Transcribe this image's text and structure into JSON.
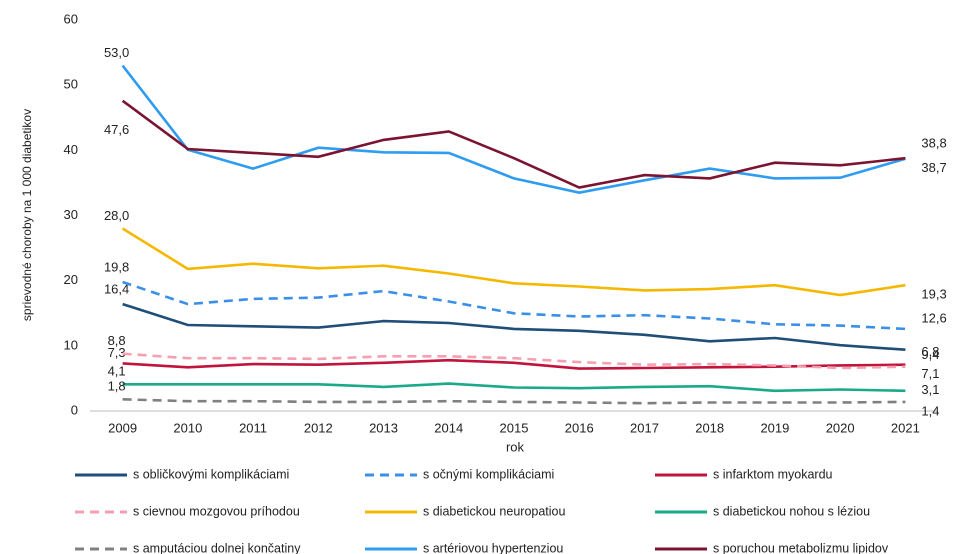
{
  "chart_data": {
    "type": "line",
    "x_label": "rok",
    "y_label": "sprievodné choroby na 1 000 diabetikov",
    "categories": [
      "2009",
      "2010",
      "2011",
      "2012",
      "2013",
      "2014",
      "2015",
      "2016",
      "2017",
      "2018",
      "2019",
      "2020",
      "2021"
    ],
    "ylim": [
      0,
      60
    ],
    "yticks": [
      0,
      10,
      20,
      30,
      40,
      50,
      60
    ],
    "grid": false,
    "series": [
      {
        "name": "s obličkovými komplikáciami",
        "color": "#1f4e79",
        "dashed": false,
        "values": [
          16.4,
          13.2,
          13.0,
          12.8,
          13.8,
          13.5,
          12.6,
          12.3,
          11.7,
          10.7,
          11.2,
          10.1,
          9.4
        ],
        "value_labels": [
          "16,4",
          null,
          null,
          null,
          null,
          null,
          null,
          null,
          null,
          null,
          null,
          null,
          "9,4"
        ]
      },
      {
        "name": "s očnými komplikáciami",
        "color": "#3a8fe8",
        "dashed": true,
        "values": [
          19.8,
          16.4,
          17.2,
          17.4,
          18.4,
          16.8,
          15.0,
          14.5,
          14.7,
          14.2,
          13.3,
          13.1,
          12.6
        ],
        "value_labels": [
          "19,8",
          null,
          null,
          null,
          null,
          null,
          null,
          null,
          null,
          null,
          null,
          null,
          "12,6"
        ]
      },
      {
        "name": "s infarktom myokardu",
        "color": "#c0143c",
        "dashed": false,
        "values": [
          7.3,
          6.7,
          7.2,
          7.1,
          7.4,
          7.8,
          7.4,
          6.5,
          6.6,
          6.7,
          6.8,
          7.0,
          7.1
        ],
        "value_labels": [
          "7,3",
          null,
          null,
          null,
          null,
          null,
          null,
          null,
          null,
          null,
          null,
          null,
          "7,1"
        ]
      },
      {
        "name": "s cievnou mozgovou príhodou",
        "color": "#f4a0b0",
        "dashed": true,
        "values": [
          8.8,
          8.1,
          8.1,
          8.0,
          8.4,
          8.4,
          8.1,
          7.5,
          7.1,
          7.2,
          7.0,
          6.6,
          6.8
        ],
        "value_labels": [
          "8,8",
          null,
          null,
          null,
          null,
          null,
          null,
          null,
          null,
          null,
          null,
          null,
          "6,8"
        ]
      },
      {
        "name": "s diabetickou neuropatiou",
        "color": "#f5b800",
        "dashed": false,
        "values": [
          28.0,
          21.8,
          22.6,
          21.9,
          22.3,
          21.1,
          19.6,
          19.1,
          18.5,
          18.7,
          19.3,
          17.8,
          19.3
        ],
        "value_labels": [
          "28,0",
          null,
          null,
          null,
          null,
          null,
          null,
          null,
          null,
          null,
          null,
          null,
          "19,3"
        ]
      },
      {
        "name": "s diabetickou nohou s léziou",
        "color": "#1aaa8a",
        "dashed": false,
        "values": [
          4.1,
          4.1,
          4.1,
          4.1,
          3.7,
          4.2,
          3.6,
          3.5,
          3.7,
          3.8,
          3.1,
          3.3,
          3.1
        ],
        "value_labels": [
          "4,1",
          null,
          null,
          null,
          null,
          null,
          null,
          null,
          null,
          null,
          null,
          null,
          "3,1"
        ]
      },
      {
        "name": "s amputáciou dolnej končatiny",
        "color": "#808080",
        "dashed": true,
        "values": [
          1.8,
          1.5,
          1.5,
          1.4,
          1.4,
          1.5,
          1.4,
          1.3,
          1.2,
          1.3,
          1.3,
          1.3,
          1.4
        ],
        "value_labels": [
          "1,8",
          null,
          null,
          null,
          null,
          null,
          null,
          null,
          null,
          null,
          null,
          null,
          "1,4"
        ]
      },
      {
        "name": "s artériovou hypertenziou",
        "color": "#2e9cf0",
        "dashed": false,
        "values": [
          53.0,
          40.1,
          37.2,
          40.4,
          39.7,
          39.6,
          35.7,
          33.5,
          35.4,
          37.2,
          35.7,
          35.8,
          38.7
        ],
        "value_labels": [
          "53,0",
          null,
          null,
          null,
          null,
          null,
          null,
          null,
          null,
          null,
          null,
          null,
          "38,7"
        ]
      },
      {
        "name": "s poruchou metabolizmu lipidov",
        "color": "#7b1430",
        "dashed": false,
        "values": [
          47.6,
          40.2,
          39.6,
          39.0,
          41.6,
          42.9,
          38.8,
          34.3,
          36.2,
          35.7,
          38.1,
          37.7,
          38.8
        ],
        "value_labels": [
          "47,6",
          null,
          null,
          null,
          null,
          null,
          null,
          null,
          null,
          null,
          null,
          null,
          "38,8"
        ]
      }
    ]
  }
}
